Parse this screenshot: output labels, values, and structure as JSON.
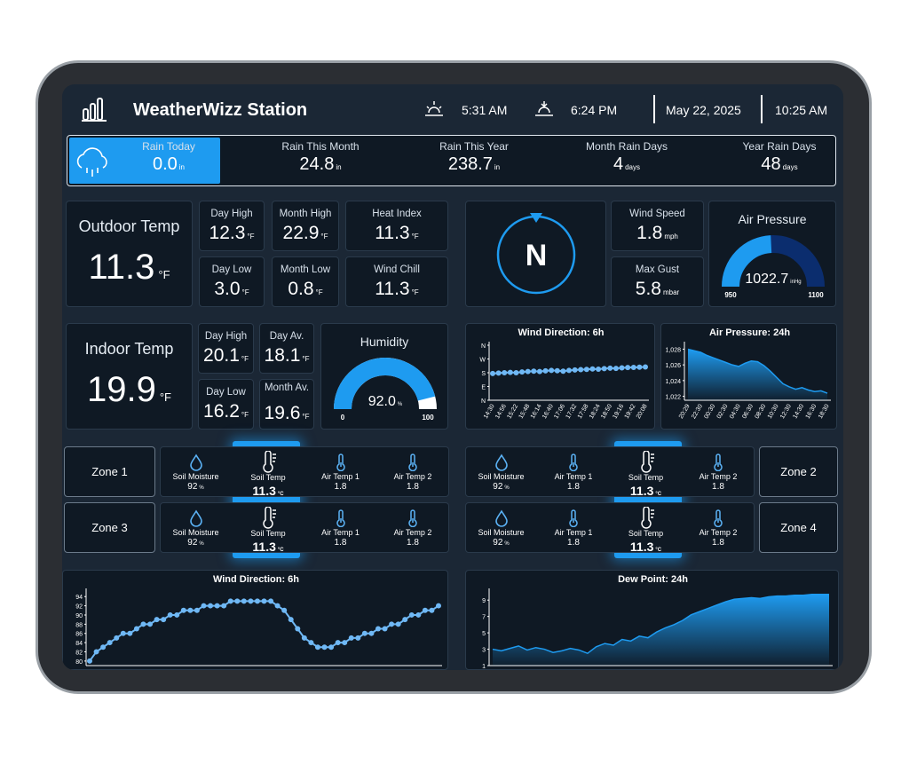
{
  "header": {
    "title": "WeatherWizz Station",
    "sunrise": "5:31 AM",
    "sunset": "6:24 PM",
    "date": "May 22, 2025",
    "time": "10:25 AM"
  },
  "rain": [
    {
      "label": "Rain Today",
      "value": "0.0",
      "unit": "in"
    },
    {
      "label": "Rain This Month",
      "value": "24.8",
      "unit": "in"
    },
    {
      "label": "Rain This Year",
      "value": "238.7",
      "unit": "in"
    },
    {
      "label": "Month Rain Days",
      "value": "4",
      "unit": "days"
    },
    {
      "label": "Year Rain Days",
      "value": "48",
      "unit": "days"
    }
  ],
  "outdoor": {
    "title": "Outdoor Temp",
    "value": "11.3",
    "unit": "°F",
    "cells": [
      {
        "label": "Day High",
        "value": "12.3",
        "unit": "°F"
      },
      {
        "label": "Month High",
        "value": "22.9",
        "unit": "°F"
      },
      {
        "label": "Heat Index",
        "value": "11.3",
        "unit": "°F"
      },
      {
        "label": "Day Low",
        "value": "3.0",
        "unit": "°F"
      },
      {
        "label": "Month Low",
        "value": "0.8",
        "unit": "°F"
      },
      {
        "label": "Wind Chill",
        "value": "11.3",
        "unit": "°F"
      }
    ]
  },
  "compass": {
    "direction": "N"
  },
  "wind": [
    {
      "label": "Wind Speed",
      "value": "1.8",
      "unit": "mph"
    },
    {
      "label": "Max Gust",
      "value": "5.8",
      "unit": "mbar"
    }
  ],
  "gauges": [
    {
      "title": "Air Pressure",
      "value": 1022.7,
      "unit": "inHg",
      "min": 950,
      "max": 1100
    },
    {
      "title": "Humidity",
      "value": 92,
      "label": "92.0",
      "unit": "%",
      "min": 0,
      "max": 100
    }
  ],
  "indoor": {
    "title": "Indoor Temp",
    "value": "19.9",
    "unit": "°F",
    "cells": [
      {
        "label": "Day High",
        "value": "20.1",
        "unit": "°F"
      },
      {
        "label": "Day Av.",
        "value": "18.1",
        "unit": "°F"
      },
      {
        "label": "Day Low",
        "value": "16.2",
        "unit": "°F"
      },
      {
        "label": "Month Av.",
        "value": "19.6",
        "unit": "°F"
      }
    ]
  },
  "zones": [
    "Zone 1",
    "Zone 2",
    "Zone 3",
    "Zone 4"
  ],
  "sensors": [
    [
      {
        "label": "Soil Moisture",
        "value": "92",
        "unit": "%"
      },
      {
        "label": "Soil Temp",
        "value": "11.3",
        "unit": "°C"
      },
      {
        "label": "Air Temp 1",
        "value": "1.8"
      },
      {
        "label": "Air Temp 2",
        "value": "1.8"
      }
    ],
    [
      {
        "label": "Soil Moisture",
        "value": "92",
        "unit": "%"
      },
      {
        "label": "Soil Temp",
        "value": "11.3",
        "unit": "°C"
      },
      {
        "label": "Air Temp 1",
        "value": "1.8"
      },
      {
        "label": "Air Temp 2",
        "value": "1.8"
      }
    ],
    [
      {
        "label": "Soil Moisture",
        "value": "92",
        "unit": "%"
      },
      {
        "label": "Air Temp 1",
        "value": "1.8"
      },
      {
        "label": "Soil Temp",
        "value": "11.3",
        "unit": "°C"
      },
      {
        "label": "Air Temp 2",
        "value": "1.8"
      }
    ],
    [
      {
        "label": "Soil Moisture",
        "value": "92",
        "unit": "%"
      },
      {
        "label": "Air Temp 1",
        "value": "1.8"
      },
      {
        "label": "Soil Temp",
        "value": "11.3",
        "unit": "°C"
      },
      {
        "label": "Air Temp 2",
        "value": "1.8"
      }
    ]
  ],
  "chart_data": [
    {
      "type": "line",
      "title": "Wind Direction: 6h",
      "color": "#6fb8f5",
      "ylim": [
        0,
        360
      ],
      "yticks": [
        {
          "value": 360,
          "label": "N"
        },
        {
          "value": 270,
          "label": "W"
        },
        {
          "value": 180,
          "label": "S"
        },
        {
          "value": 90,
          "label": "E"
        },
        {
          "value": 0,
          "label": "N"
        }
      ],
      "categories": [
        "14:30",
        null,
        "14:56",
        null,
        "15:22",
        null,
        "15:48",
        null,
        "16:14",
        null,
        "16:40",
        null,
        "17:06",
        null,
        "17:32",
        null,
        "17:58",
        null,
        "18:24",
        null,
        "18:50",
        null,
        "19:16",
        null,
        "19:42",
        null,
        "20:08"
      ],
      "values": [
        175,
        178,
        180,
        182,
        180,
        185,
        188,
        190,
        188,
        192,
        195,
        193,
        190,
        195,
        198,
        200,
        202,
        205,
        203,
        207,
        210,
        208,
        212,
        214,
        215,
        216,
        218
      ]
    },
    {
      "type": "area",
      "title": "Air Pressure: 24h",
      "color": "#1e9bf0",
      "ylim": [
        1021.5,
        1028.5
      ],
      "yticks": [
        {
          "value": 1028,
          "label": "1,028"
        },
        {
          "value": 1026,
          "label": "1,026"
        },
        {
          "value": 1024,
          "label": "1,024"
        },
        {
          "value": 1022,
          "label": "1,022"
        }
      ],
      "categories": [
        "20:29",
        null,
        "22:30",
        null,
        "00:30",
        null,
        "02:30",
        null,
        "04:30",
        null,
        "06:30",
        null,
        "08:30",
        null,
        "10:30",
        null,
        "12:30",
        null,
        "14:30",
        null,
        "16:30",
        null,
        "18:30"
      ],
      "values": [
        1028,
        1027.8,
        1027.6,
        1027.2,
        1026.9,
        1026.6,
        1026.3,
        1026,
        1025.8,
        1026.2,
        1026.5,
        1026.4,
        1025.9,
        1025.2,
        1024.4,
        1023.6,
        1023.2,
        1022.9,
        1023.1,
        1022.8,
        1022.6,
        1022.7,
        1022.4
      ]
    },
    {
      "type": "line",
      "title": "Wind Direction: 6h",
      "color": "#6fb8f5",
      "ylim": [
        79,
        95
      ],
      "yticks": [
        94,
        92,
        90,
        88,
        86,
        84,
        82,
        80
      ],
      "values": [
        80,
        82,
        83,
        84,
        85,
        86,
        86,
        87,
        88,
        88,
        89,
        89,
        90,
        90,
        91,
        91,
        91,
        92,
        92,
        92,
        92,
        93,
        93,
        93,
        93,
        93,
        93,
        93,
        92,
        91,
        89,
        87,
        85,
        84,
        83,
        83,
        83,
        84,
        84,
        85,
        85,
        86,
        86,
        87,
        87,
        88,
        88,
        89,
        90,
        90,
        91,
        91,
        92
      ]
    },
    {
      "type": "area",
      "title": "Dew Point: 24h",
      "color": "#1e9bf0",
      "ylim": [
        1,
        10
      ],
      "yticks": [
        9,
        7,
        5,
        3,
        1
      ],
      "values": [
        3,
        2.8,
        3.1,
        3.4,
        2.9,
        3.2,
        3,
        2.6,
        2.8,
        3.1,
        2.9,
        2.5,
        3.3,
        3.7,
        3.5,
        4.2,
        4,
        4.6,
        4.4,
        5.1,
        5.6,
        6,
        6.5,
        7.2,
        7.6,
        8,
        8.4,
        8.8,
        9.1,
        9.2,
        9.3,
        9.2,
        9.4,
        9.5,
        9.5,
        9.6,
        9.6,
        9.7,
        9.7,
        9.7
      ]
    }
  ]
}
